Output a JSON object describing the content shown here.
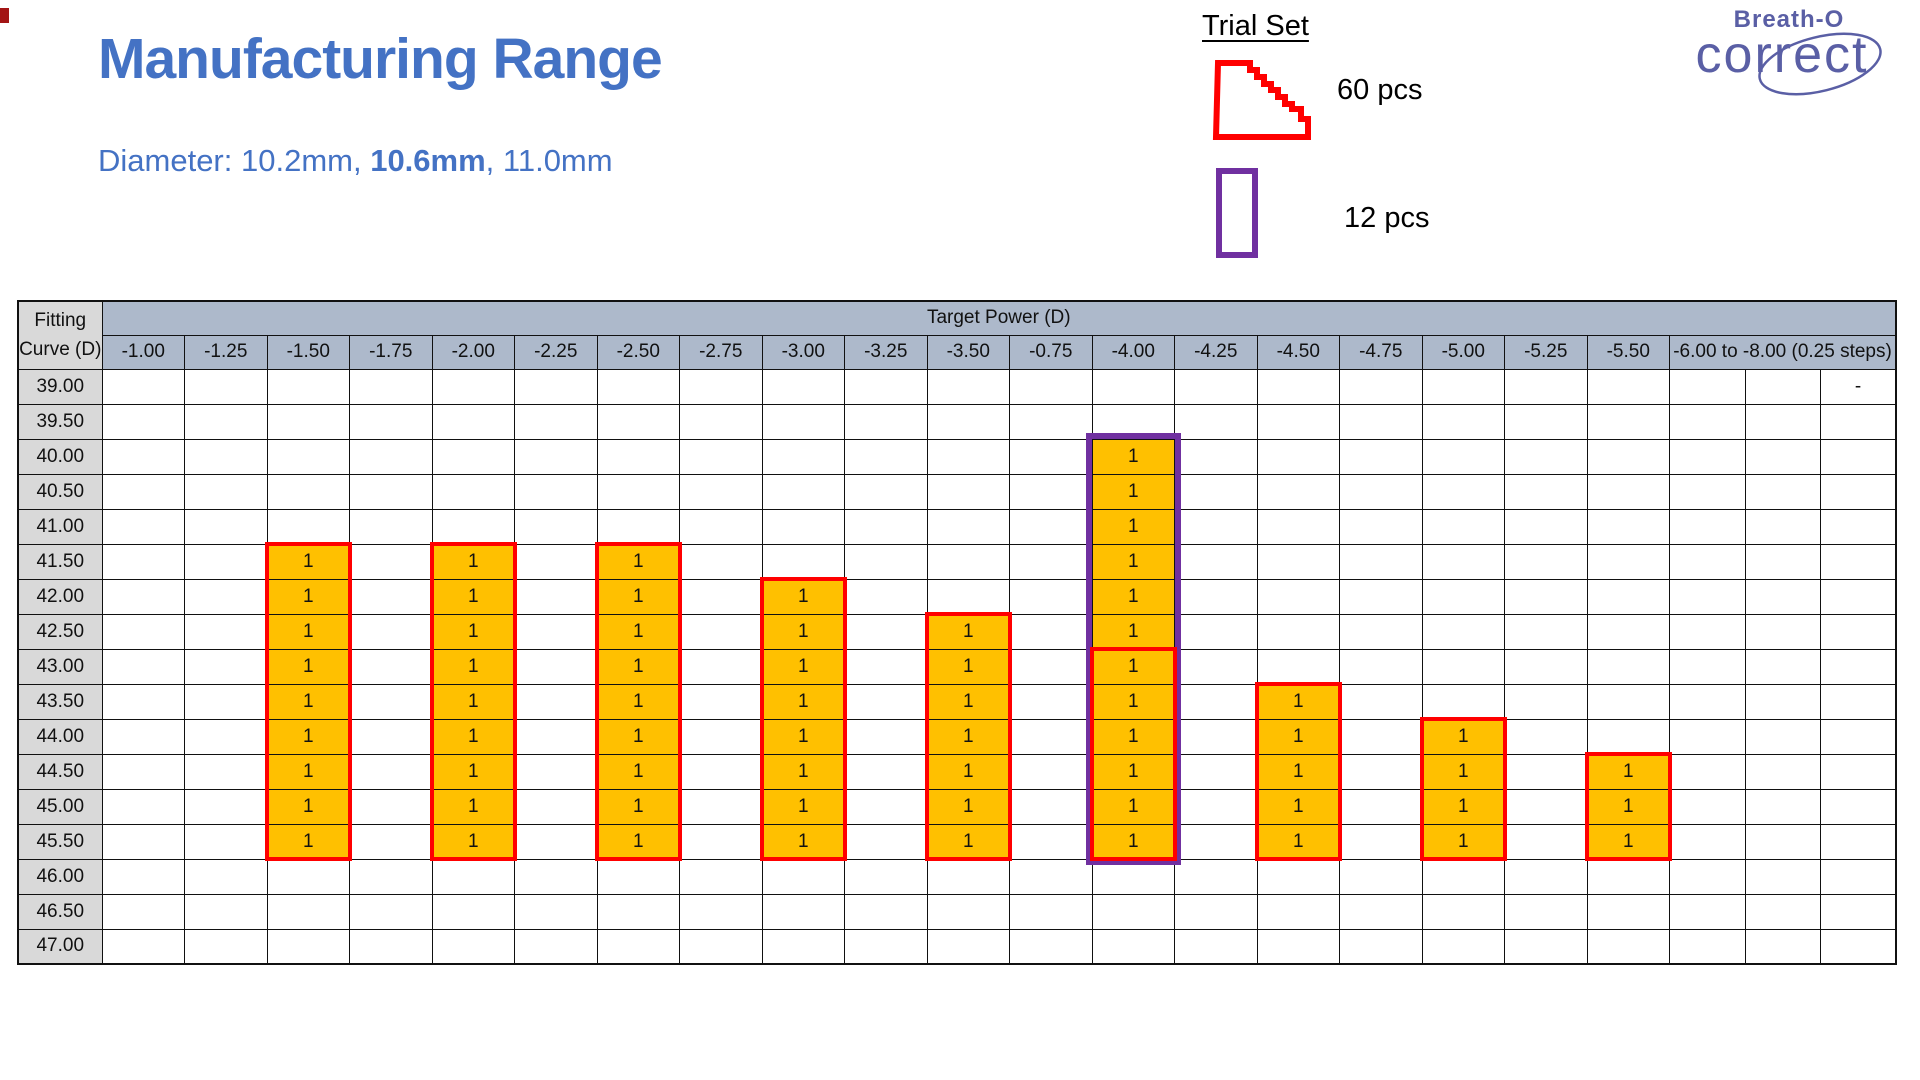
{
  "header": {
    "title": "Manufacturing Range",
    "subtitle_prefix": "Diameter: 10.2mm, ",
    "subtitle_bold": "10.6mm",
    "subtitle_suffix": ", 11.0mm",
    "title_color": "#4472C4"
  },
  "legend": {
    "title": "Trial Set",
    "items": [
      {
        "icon": "stair-outline-icon",
        "label": "60 pcs",
        "color": "#FF0000"
      },
      {
        "icon": "rect-outline-icon",
        "label": "12 pcs",
        "color": "#7030A0"
      }
    ]
  },
  "logo": {
    "line1": "Breath-O",
    "line2": "correct",
    "color": "#5A5FA5"
  },
  "chart_data": {
    "type": "table",
    "title": "Manufacturing Range",
    "column_group_label": "Target Power (D)",
    "row_axis_label_line1": "Fitting",
    "row_axis_label_line2": "Curve (D)",
    "columns": [
      "-1.00",
      "-1.25",
      "-1.50",
      "-1.75",
      "-2.00",
      "-2.25",
      "-2.50",
      "-2.75",
      "-3.00",
      "-3.25",
      "-3.50",
      "-0.75",
      "-4.00",
      "-4.25",
      "-4.50",
      "-4.75",
      "-5.00",
      "-5.25",
      "-5.50"
    ],
    "span_column": {
      "label": "-6.00 to -8.00 (0.25 steps)",
      "colspan": 3
    },
    "rows": [
      "39.00",
      "39.50",
      "40.00",
      "40.50",
      "41.00",
      "41.50",
      "42.00",
      "42.50",
      "43.00",
      "43.50",
      "44.00",
      "44.50",
      "45.00",
      "45.50",
      "46.00",
      "46.50",
      "47.00"
    ],
    "cell_value": "1",
    "dash_cell": {
      "row": "39.00",
      "span_sub_index": 2,
      "text": "-"
    },
    "colors": {
      "header_bg": "#ADB9CB",
      "label_bg": "#D9D9D9",
      "cell_orange": "#FFC000",
      "outline_red": "#FF0000",
      "outline_purple": "#7030A0"
    },
    "bars": [
      {
        "col": "-1.50",
        "from": "41.50",
        "to": "45.50",
        "outline": "red"
      },
      {
        "col": "-2.00",
        "from": "41.50",
        "to": "45.50",
        "outline": "red"
      },
      {
        "col": "-2.50",
        "from": "41.50",
        "to": "45.50",
        "outline": "red"
      },
      {
        "col": "-3.00",
        "from": "42.00",
        "to": "45.50",
        "outline": "red"
      },
      {
        "col": "-3.50",
        "from": "42.50",
        "to": "45.50",
        "outline": "red"
      },
      {
        "col": "-4.00",
        "from": "40.00",
        "to": "45.50",
        "outline": "purple"
      },
      {
        "col": "-4.00",
        "from": "43.00",
        "to": "45.50",
        "outline": "red"
      },
      {
        "col": "-4.50",
        "from": "43.50",
        "to": "45.50",
        "outline": "red"
      },
      {
        "col": "-5.00",
        "from": "44.00",
        "to": "45.50",
        "outline": "red"
      },
      {
        "col": "-5.50",
        "from": "44.50",
        "to": "45.50",
        "outline": "red"
      }
    ]
  }
}
